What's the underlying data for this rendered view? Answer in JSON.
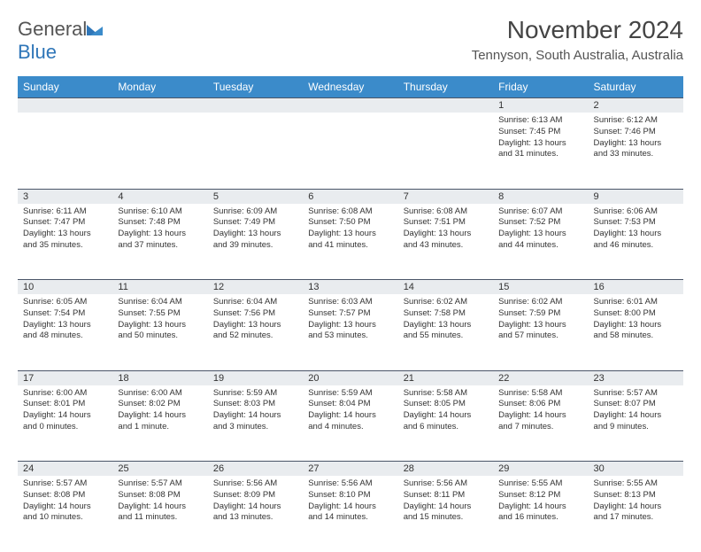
{
  "logo": {
    "word1": "General",
    "word2": "Blue"
  },
  "header": {
    "month_title": "November 2024",
    "location": "Tennyson, South Australia, Australia"
  },
  "colors": {
    "header_bg": "#3b8bca",
    "header_text": "#ffffff",
    "daynum_bg": "#e9ecef",
    "row_border": "#4a5568",
    "accent_blue": "#2f76b8"
  },
  "weekdays": [
    "Sunday",
    "Monday",
    "Tuesday",
    "Wednesday",
    "Thursday",
    "Friday",
    "Saturday"
  ],
  "weeks": [
    [
      {
        "n": "",
        "lines": []
      },
      {
        "n": "",
        "lines": []
      },
      {
        "n": "",
        "lines": []
      },
      {
        "n": "",
        "lines": []
      },
      {
        "n": "",
        "lines": []
      },
      {
        "n": "1",
        "lines": [
          "Sunrise: 6:13 AM",
          "Sunset: 7:45 PM",
          "Daylight: 13 hours",
          "and 31 minutes."
        ]
      },
      {
        "n": "2",
        "lines": [
          "Sunrise: 6:12 AM",
          "Sunset: 7:46 PM",
          "Daylight: 13 hours",
          "and 33 minutes."
        ]
      }
    ],
    [
      {
        "n": "3",
        "lines": [
          "Sunrise: 6:11 AM",
          "Sunset: 7:47 PM",
          "Daylight: 13 hours",
          "and 35 minutes."
        ]
      },
      {
        "n": "4",
        "lines": [
          "Sunrise: 6:10 AM",
          "Sunset: 7:48 PM",
          "Daylight: 13 hours",
          "and 37 minutes."
        ]
      },
      {
        "n": "5",
        "lines": [
          "Sunrise: 6:09 AM",
          "Sunset: 7:49 PM",
          "Daylight: 13 hours",
          "and 39 minutes."
        ]
      },
      {
        "n": "6",
        "lines": [
          "Sunrise: 6:08 AM",
          "Sunset: 7:50 PM",
          "Daylight: 13 hours",
          "and 41 minutes."
        ]
      },
      {
        "n": "7",
        "lines": [
          "Sunrise: 6:08 AM",
          "Sunset: 7:51 PM",
          "Daylight: 13 hours",
          "and 43 minutes."
        ]
      },
      {
        "n": "8",
        "lines": [
          "Sunrise: 6:07 AM",
          "Sunset: 7:52 PM",
          "Daylight: 13 hours",
          "and 44 minutes."
        ]
      },
      {
        "n": "9",
        "lines": [
          "Sunrise: 6:06 AM",
          "Sunset: 7:53 PM",
          "Daylight: 13 hours",
          "and 46 minutes."
        ]
      }
    ],
    [
      {
        "n": "10",
        "lines": [
          "Sunrise: 6:05 AM",
          "Sunset: 7:54 PM",
          "Daylight: 13 hours",
          "and 48 minutes."
        ]
      },
      {
        "n": "11",
        "lines": [
          "Sunrise: 6:04 AM",
          "Sunset: 7:55 PM",
          "Daylight: 13 hours",
          "and 50 minutes."
        ]
      },
      {
        "n": "12",
        "lines": [
          "Sunrise: 6:04 AM",
          "Sunset: 7:56 PM",
          "Daylight: 13 hours",
          "and 52 minutes."
        ]
      },
      {
        "n": "13",
        "lines": [
          "Sunrise: 6:03 AM",
          "Sunset: 7:57 PM",
          "Daylight: 13 hours",
          "and 53 minutes."
        ]
      },
      {
        "n": "14",
        "lines": [
          "Sunrise: 6:02 AM",
          "Sunset: 7:58 PM",
          "Daylight: 13 hours",
          "and 55 minutes."
        ]
      },
      {
        "n": "15",
        "lines": [
          "Sunrise: 6:02 AM",
          "Sunset: 7:59 PM",
          "Daylight: 13 hours",
          "and 57 minutes."
        ]
      },
      {
        "n": "16",
        "lines": [
          "Sunrise: 6:01 AM",
          "Sunset: 8:00 PM",
          "Daylight: 13 hours",
          "and 58 minutes."
        ]
      }
    ],
    [
      {
        "n": "17",
        "lines": [
          "Sunrise: 6:00 AM",
          "Sunset: 8:01 PM",
          "Daylight: 14 hours",
          "and 0 minutes."
        ]
      },
      {
        "n": "18",
        "lines": [
          "Sunrise: 6:00 AM",
          "Sunset: 8:02 PM",
          "Daylight: 14 hours",
          "and 1 minute."
        ]
      },
      {
        "n": "19",
        "lines": [
          "Sunrise: 5:59 AM",
          "Sunset: 8:03 PM",
          "Daylight: 14 hours",
          "and 3 minutes."
        ]
      },
      {
        "n": "20",
        "lines": [
          "Sunrise: 5:59 AM",
          "Sunset: 8:04 PM",
          "Daylight: 14 hours",
          "and 4 minutes."
        ]
      },
      {
        "n": "21",
        "lines": [
          "Sunrise: 5:58 AM",
          "Sunset: 8:05 PM",
          "Daylight: 14 hours",
          "and 6 minutes."
        ]
      },
      {
        "n": "22",
        "lines": [
          "Sunrise: 5:58 AM",
          "Sunset: 8:06 PM",
          "Daylight: 14 hours",
          "and 7 minutes."
        ]
      },
      {
        "n": "23",
        "lines": [
          "Sunrise: 5:57 AM",
          "Sunset: 8:07 PM",
          "Daylight: 14 hours",
          "and 9 minutes."
        ]
      }
    ],
    [
      {
        "n": "24",
        "lines": [
          "Sunrise: 5:57 AM",
          "Sunset: 8:08 PM",
          "Daylight: 14 hours",
          "and 10 minutes."
        ]
      },
      {
        "n": "25",
        "lines": [
          "Sunrise: 5:57 AM",
          "Sunset: 8:08 PM",
          "Daylight: 14 hours",
          "and 11 minutes."
        ]
      },
      {
        "n": "26",
        "lines": [
          "Sunrise: 5:56 AM",
          "Sunset: 8:09 PM",
          "Daylight: 14 hours",
          "and 13 minutes."
        ]
      },
      {
        "n": "27",
        "lines": [
          "Sunrise: 5:56 AM",
          "Sunset: 8:10 PM",
          "Daylight: 14 hours",
          "and 14 minutes."
        ]
      },
      {
        "n": "28",
        "lines": [
          "Sunrise: 5:56 AM",
          "Sunset: 8:11 PM",
          "Daylight: 14 hours",
          "and 15 minutes."
        ]
      },
      {
        "n": "29",
        "lines": [
          "Sunrise: 5:55 AM",
          "Sunset: 8:12 PM",
          "Daylight: 14 hours",
          "and 16 minutes."
        ]
      },
      {
        "n": "30",
        "lines": [
          "Sunrise: 5:55 AM",
          "Sunset: 8:13 PM",
          "Daylight: 14 hours",
          "and 17 minutes."
        ]
      }
    ]
  ]
}
